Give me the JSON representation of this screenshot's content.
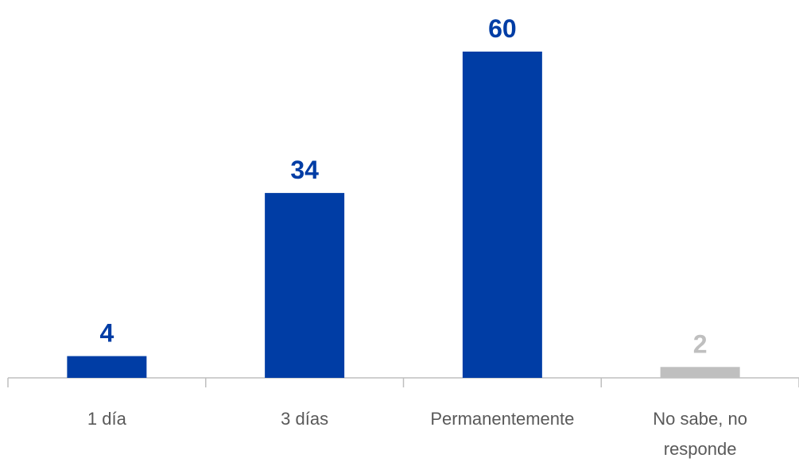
{
  "chart_data": {
    "type": "bar",
    "categories": [
      "1 día",
      "3 días",
      "Permanentemente",
      "No sabe, no responde"
    ],
    "values": [
      4,
      34,
      60,
      2
    ],
    "colors": [
      "#003da5",
      "#003da5",
      "#003da5",
      "#bfbfbf"
    ],
    "ylim": [
      0,
      60
    ],
    "grid": false
  }
}
